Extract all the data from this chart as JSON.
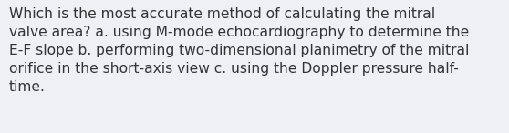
{
  "lines": [
    "Which is the most accurate method of calculating the mitral",
    "valve area? a. using M-mode echocardiography to determine the",
    "E-F slope b. performing two-dimensional planimetry of the mitral",
    "orifice in the short-axis view c. using the Doppler pressure half-",
    "time."
  ],
  "background_color": "#eef0f4",
  "text_color": "#333333",
  "font_size": 11.2,
  "font_family": "DejaVu Sans"
}
